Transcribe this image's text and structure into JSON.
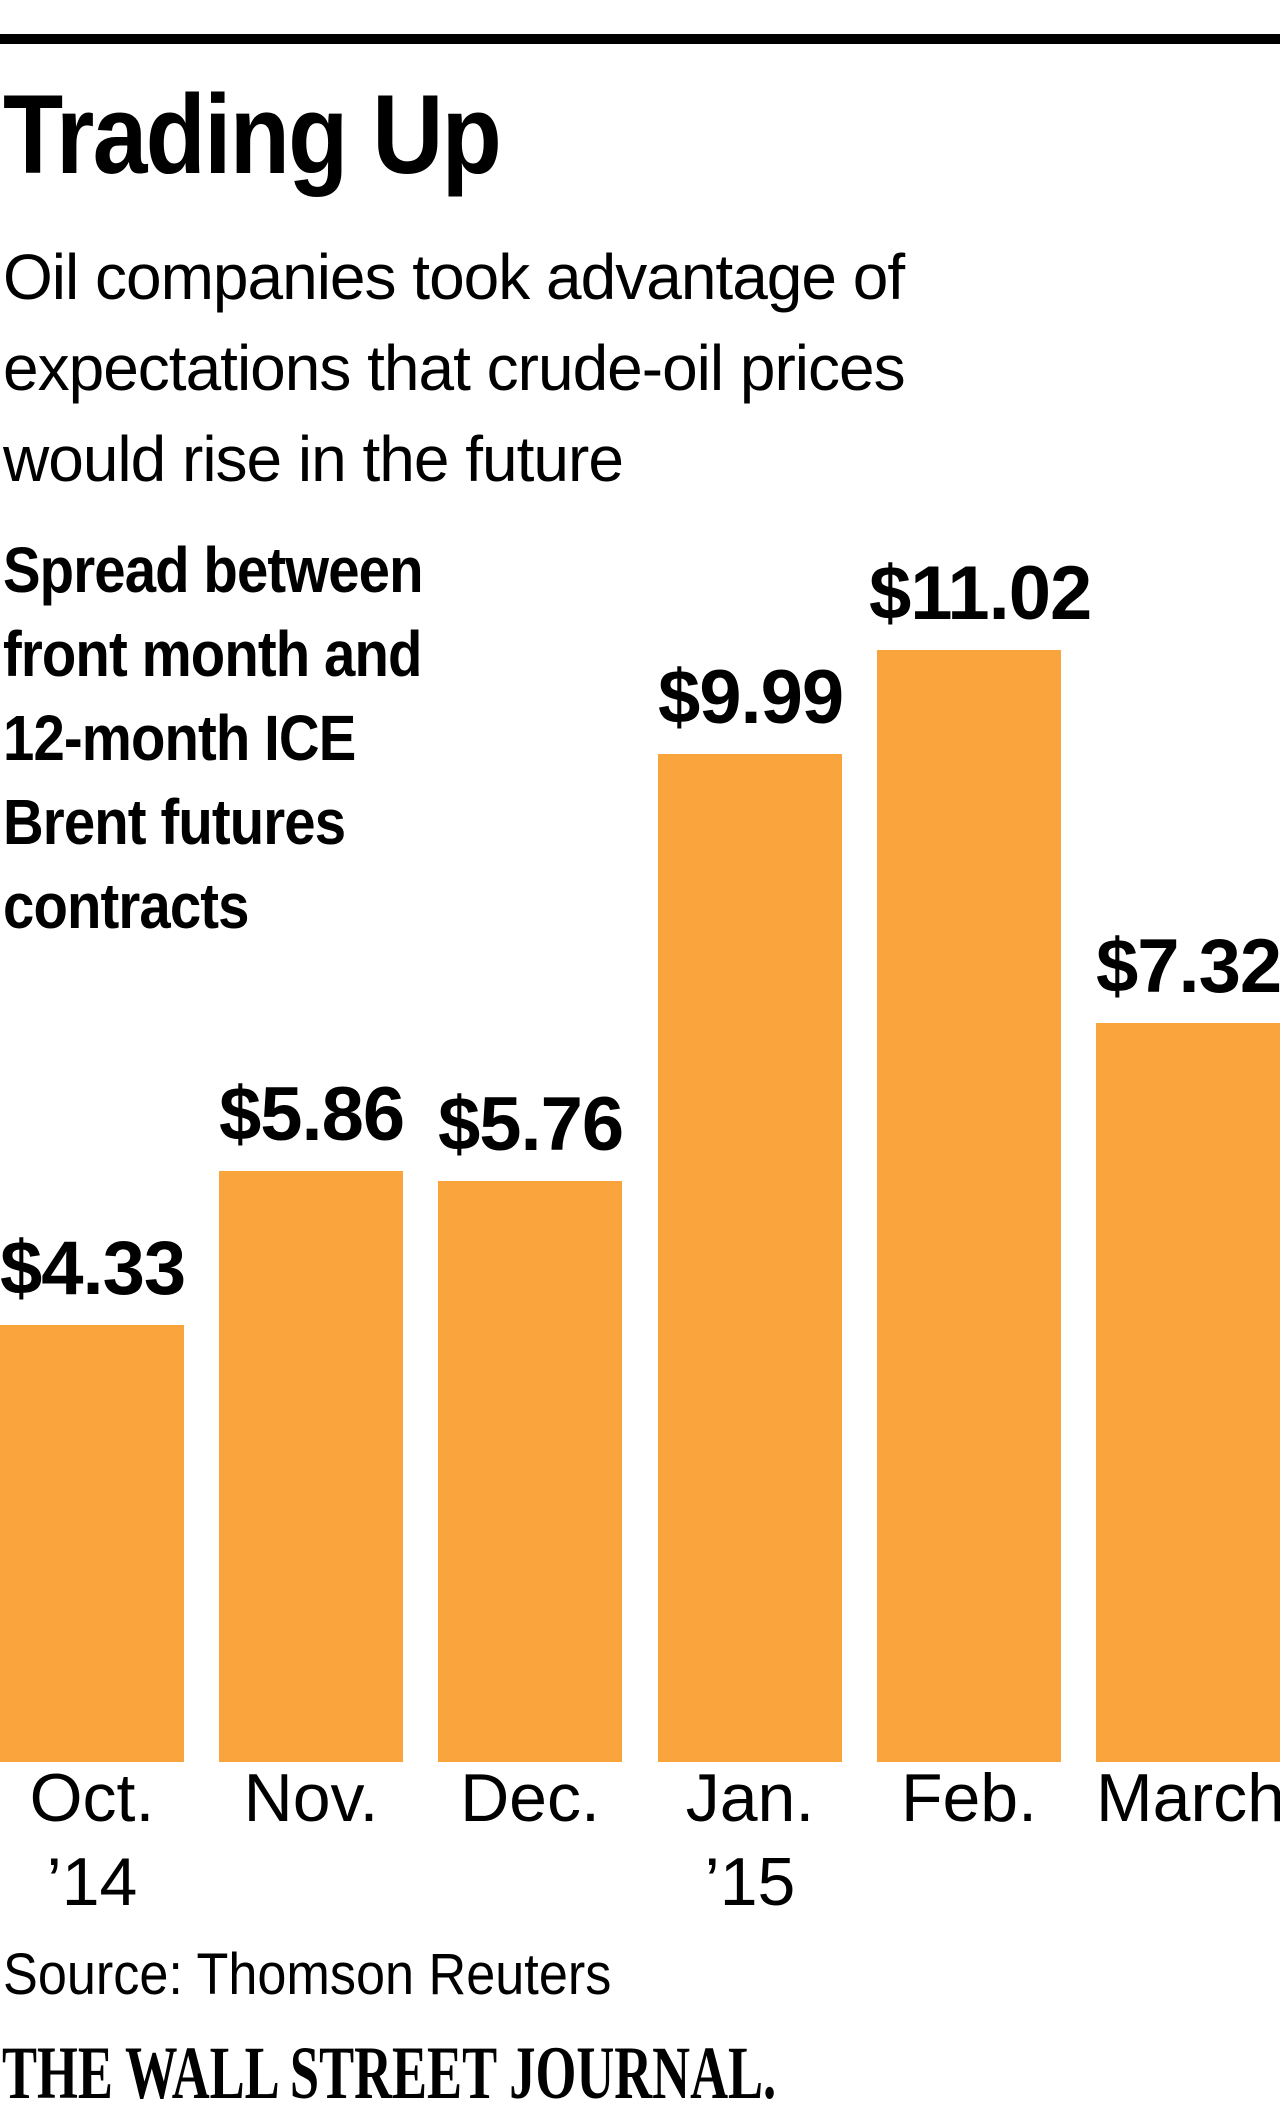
{
  "header": {
    "title": "Trading Up",
    "subtitle_lines": [
      "Oil companies took advantage of",
      "expectations that crude-oil prices",
      "would rise in the future"
    ]
  },
  "chart_data": {
    "type": "bar",
    "title": "Trading Up",
    "subtitle": "Oil companies took advantage of expectations that crude-oil prices would rise in the future",
    "description": "Spread between front month and 12-month ICE Brent futures contracts",
    "description_lines": [
      "Spread between",
      "front month and",
      "12-month ICE",
      "Brent futures",
      "contracts"
    ],
    "categories": [
      "Oct.",
      "Nov.",
      "Dec.",
      "Jan.",
      "Feb.",
      "March"
    ],
    "values": [
      4.33,
      5.86,
      5.76,
      9.99,
      11.02,
      7.32
    ],
    "value_labels": [
      "$4.33",
      "$5.86",
      "$5.76",
      "$9.99",
      "$11.02",
      "$7.32"
    ],
    "x_axis_year_labels": [
      {
        "bar_index": 0,
        "label": "’14"
      },
      {
        "bar_index": 3,
        "label": "’15"
      }
    ],
    "bar_color": "#FAA43D",
    "ylim": [
      0,
      11.02
    ],
    "grid": false,
    "legend_position": "none",
    "xlabel": "",
    "ylabel": ""
  },
  "footer": {
    "source": "Source: Thomson Reuters",
    "credit": "THE WALL STREET JOURNAL."
  }
}
